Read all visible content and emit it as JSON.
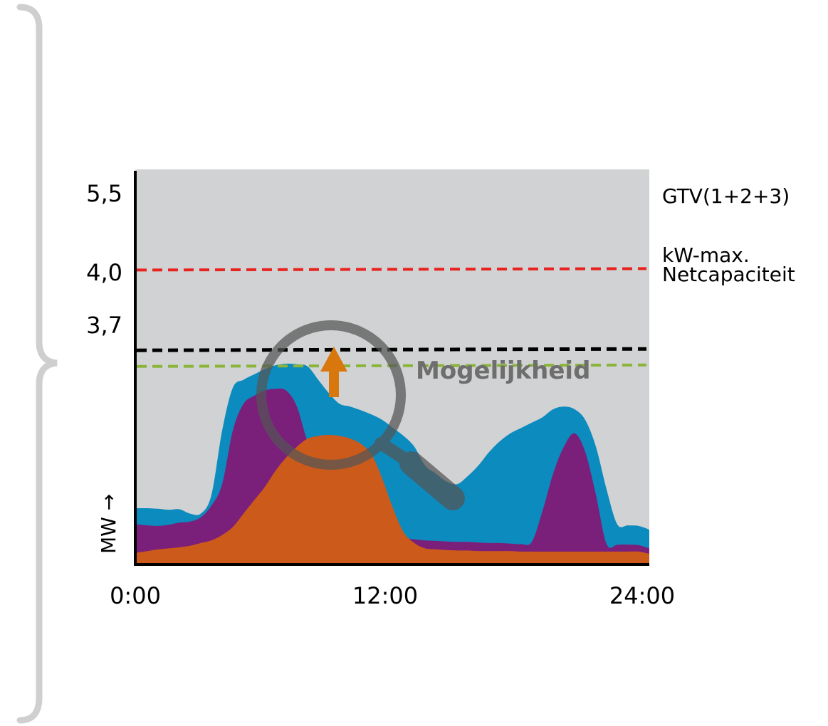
{
  "colors": {
    "background": "#ffffff",
    "plot_bg": "#d1d2d3",
    "brace": "#cfcfcf",
    "axis": "#000000",
    "series_blue": "#0c8bbe",
    "series_purple": "#7a1f7a",
    "series_orange": "#cc5a1a",
    "arrow": "#d9770f",
    "magnifier": "#555555",
    "callout_text": "#6e6e6e"
  },
  "icons": {
    "magnifier": "magnifier-icon",
    "arrow": "arrow-up-icon",
    "brace": "curly-brace-icon"
  },
  "chart_data": {
    "type": "area",
    "x_range": [
      0,
      24
    ],
    "y_range": [
      0,
      6.2
    ],
    "ylabel": "MW →",
    "x_ticks": [
      {
        "x": 0,
        "label": "0:00"
      },
      {
        "x": 12,
        "label": "12:00"
      },
      {
        "x": 24,
        "label": "24:00"
      }
    ],
    "reference_lines": [
      {
        "value": 5.5,
        "tick_label": "5,5",
        "label": "GTV(1+2+3)",
        "color": "#e8231f"
      },
      {
        "value": 4.0,
        "tick_label": "4,0",
        "label": "Netcapaciteit",
        "color": "#000000"
      },
      {
        "value": 3.7,
        "tick_label": "3,7",
        "label": "kW-max.",
        "color": "#8ab43a"
      }
    ],
    "series": [
      {
        "color": "#0c8bbe",
        "x": [
          0,
          0.5,
          1,
          1.5,
          2,
          2.5,
          3,
          3.5,
          4,
          4.5,
          5,
          5.5,
          6,
          6.5,
          7,
          7.5,
          8,
          8.5,
          9,
          9.5,
          10,
          10.5,
          11,
          11.5,
          12,
          12.5,
          13,
          13.5,
          14,
          14.5,
          15,
          15.5,
          16,
          16.5,
          17,
          17.5,
          18,
          18.5,
          19,
          19.5,
          20,
          20.5,
          21,
          21.5,
          22,
          22.5,
          23,
          23.5,
          24
        ],
        "values": [
          1.05,
          1.05,
          1.04,
          1.02,
          1.03,
          0.95,
          0.95,
          1.3,
          2.5,
          3.3,
          3.45,
          3.55,
          3.65,
          3.72,
          3.75,
          3.74,
          3.7,
          3.45,
          3.2,
          3.0,
          2.95,
          2.88,
          2.8,
          2.7,
          2.55,
          2.4,
          2.2,
          1.85,
          1.7,
          1.55,
          1.5,
          1.65,
          1.85,
          2.1,
          2.3,
          2.45,
          2.55,
          2.65,
          2.75,
          2.9,
          2.95,
          2.9,
          2.7,
          2.2,
          1.4,
          0.75,
          0.73,
          0.72,
          0.65
        ]
      },
      {
        "color": "#7a1f7a",
        "x": [
          0,
          0.5,
          1,
          1.5,
          2,
          2.5,
          3,
          3.5,
          4,
          4.5,
          5,
          5.5,
          6,
          6.5,
          7,
          7.5,
          8,
          8.5,
          9,
          9.5,
          10,
          10.5,
          11,
          11.5,
          12,
          12.5,
          13,
          13.5,
          14,
          14.5,
          15,
          15.5,
          16,
          16.5,
          17,
          17.5,
          18,
          18.5,
          19,
          19.5,
          20,
          20.5,
          21,
          21.5,
          22,
          22.5,
          23,
          23.5,
          24
        ],
        "values": [
          0.75,
          0.73,
          0.72,
          0.74,
          0.78,
          0.8,
          0.88,
          1.1,
          1.5,
          2.5,
          3.0,
          3.15,
          3.25,
          3.28,
          3.25,
          2.95,
          2.3,
          2.0,
          1.95,
          1.85,
          1.75,
          1.6,
          1.35,
          0.95,
          0.65,
          0.5,
          0.47,
          0.45,
          0.44,
          0.43,
          0.42,
          0.42,
          0.41,
          0.4,
          0.4,
          0.39,
          0.38,
          0.42,
          1.0,
          1.7,
          2.2,
          2.45,
          2.1,
          1.3,
          0.38,
          0.37,
          0.37,
          0.36,
          0.3
        ]
      },
      {
        "color": "#cc5a1a",
        "x": [
          0,
          0.5,
          1,
          1.5,
          2,
          2.5,
          3,
          3.5,
          4,
          4.5,
          5,
          5.5,
          6,
          6.5,
          7,
          7.5,
          8,
          8.5,
          9,
          9.5,
          10,
          10.5,
          11,
          11.5,
          12,
          12.5,
          13,
          13.5,
          14,
          14.5,
          15,
          15.5,
          16,
          16.5,
          17,
          17.5,
          18,
          18.5,
          19,
          19.5,
          20,
          20.5,
          21,
          21.5,
          22,
          22.5,
          23,
          23.5,
          24
        ],
        "values": [
          0.22,
          0.25,
          0.28,
          0.3,
          0.32,
          0.35,
          0.4,
          0.45,
          0.55,
          0.7,
          0.95,
          1.2,
          1.45,
          1.75,
          2.0,
          2.2,
          2.35,
          2.4,
          2.42,
          2.4,
          2.35,
          2.25,
          2.05,
          1.6,
          1.05,
          0.6,
          0.4,
          0.3,
          0.28,
          0.27,
          0.26,
          0.26,
          0.25,
          0.25,
          0.25,
          0.25,
          0.24,
          0.24,
          0.24,
          0.24,
          0.24,
          0.24,
          0.24,
          0.24,
          0.24,
          0.24,
          0.24,
          0.24,
          0.2
        ]
      }
    ],
    "annotations": [
      {
        "type": "arrow",
        "direction": "up"
      },
      {
        "type": "magnifier",
        "text": "Mogelijkheid"
      }
    ]
  }
}
